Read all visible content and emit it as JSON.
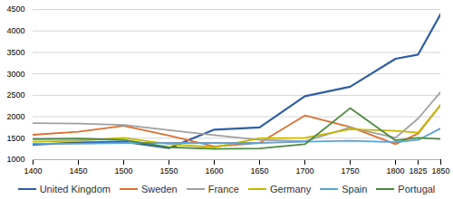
{
  "chart_data": {
    "type": "line",
    "x": [
      1400,
      1450,
      1500,
      1550,
      1600,
      1650,
      1700,
      1750,
      1800,
      1825,
      1850
    ],
    "series": [
      {
        "name": "United Kingdom",
        "color": "#2e5fa3",
        "values": [
          1350,
          1400,
          1420,
          1270,
          1700,
          1750,
          2480,
          2700,
          3350,
          3450,
          4400
        ]
      },
      {
        "name": "Sweden",
        "color": "#e07030",
        "values": [
          1580,
          1650,
          1790,
          1560,
          1310,
          1390,
          2030,
          1760,
          1360,
          1610,
          2280
        ]
      },
      {
        "name": "France",
        "color": "#a0a0a0",
        "values": [
          1850,
          1840,
          1810,
          1690,
          1570,
          1460,
          1430,
          1750,
          1510,
          1960,
          2580
        ]
      },
      {
        "name": "Germany",
        "color": "#c8b800",
        "values": [
          1420,
          1440,
          1510,
          1360,
          1290,
          1500,
          1510,
          1710,
          1670,
          1630,
          2280
        ]
      },
      {
        "name": "Spain",
        "color": "#5ba3d9",
        "values": [
          1370,
          1370,
          1390,
          1390,
          1390,
          1390,
          1420,
          1440,
          1410,
          1460,
          1730
        ]
      },
      {
        "name": "Portugal",
        "color": "#4a8c3f",
        "values": [
          1480,
          1490,
          1460,
          1290,
          1250,
          1260,
          1360,
          2200,
          1450,
          1510,
          1480
        ]
      }
    ],
    "xlim": [
      1400,
      1850
    ],
    "xticks": [
      1400,
      1450,
      1500,
      1550,
      1600,
      1650,
      1700,
      1750,
      1800,
      1825,
      1850
    ],
    "ylim": [
      1000,
      4500
    ],
    "yticks": [
      1000,
      1500,
      2000,
      2500,
      3000,
      3500,
      4000,
      4500
    ],
    "grid": true,
    "legend": "bottom"
  }
}
